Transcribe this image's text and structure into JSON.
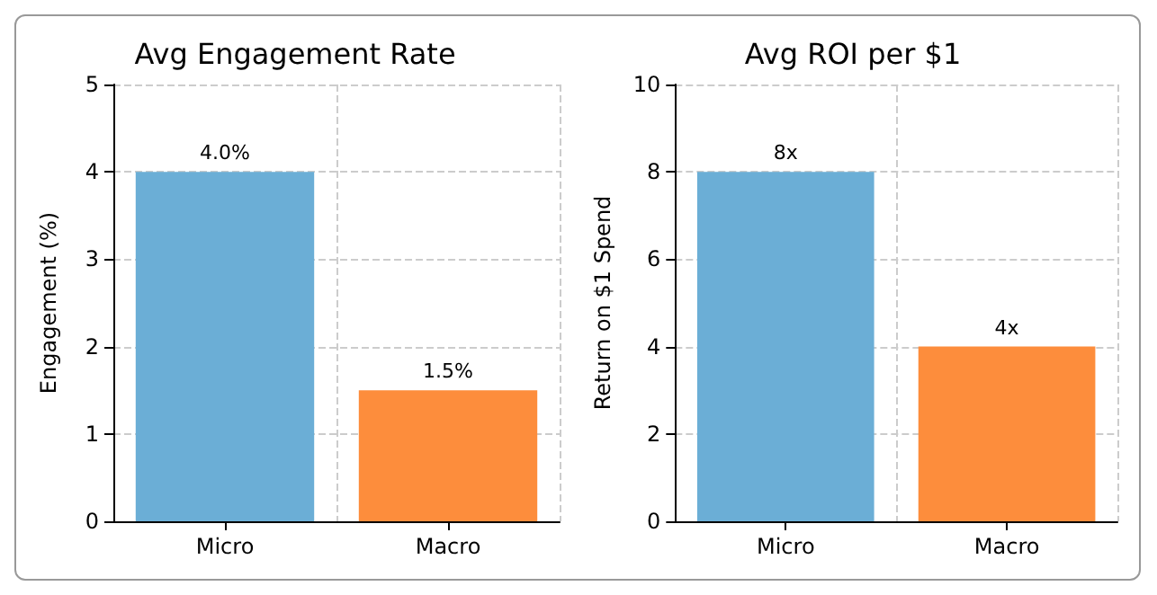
{
  "chart_data": [
    {
      "type": "bar",
      "title": "Avg Engagement Rate",
      "ylabel": "Engagement (%)",
      "categories": [
        "Micro",
        "Macro"
      ],
      "values": [
        4.0,
        1.5
      ],
      "colors": [
        "#6baed6",
        "#fd8d3c"
      ],
      "value_labels": [
        "4.0%",
        "1.5%"
      ],
      "ylim": [
        0,
        5
      ],
      "yticks": [
        0,
        1,
        2,
        3,
        4,
        5
      ],
      "grid": true
    },
    {
      "type": "bar",
      "title": "Avg ROI per $1",
      "ylabel": "Return on $1 Spend",
      "categories": [
        "Micro",
        "Macro"
      ],
      "values": [
        8,
        4
      ],
      "colors": [
        "#6baed6",
        "#fd8d3c"
      ],
      "value_labels": [
        "8x",
        "4x"
      ],
      "ylim": [
        0,
        10
      ],
      "yticks": [
        0,
        2,
        4,
        6,
        8,
        10
      ],
      "grid": true
    }
  ]
}
